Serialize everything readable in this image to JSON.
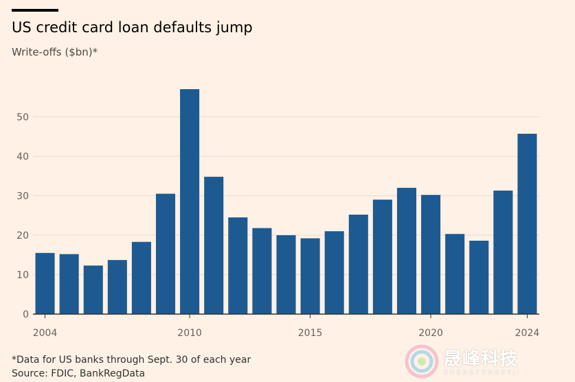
{
  "header": {
    "title": "US credit card loan defaults jump",
    "subtitle": "Write-offs ($bn)*"
  },
  "footer": {
    "note": "*Data for US banks through Sept. 30 of each year",
    "source": "Source: FDIC, BankRegData"
  },
  "watermark": {
    "text": "晟峰科技",
    "subtext": "SHENGFENGKEJI"
  },
  "colors": {
    "bar": "#1d5a91",
    "background": "#fff1e5",
    "grid": "#e6d9ce",
    "axis": "#33302e"
  },
  "chart_data": {
    "type": "bar",
    "categories": [
      "2004",
      "2005",
      "2006",
      "2007",
      "2008",
      "2009",
      "2010",
      "2011",
      "2012",
      "2013",
      "2014",
      "2015",
      "2016",
      "2017",
      "2018",
      "2019",
      "2020",
      "2021",
      "2022",
      "2023",
      "2024"
    ],
    "values": [
      15.5,
      15.2,
      12.3,
      13.7,
      18.3,
      30.5,
      57.0,
      34.8,
      24.5,
      21.8,
      20.0,
      19.2,
      21.0,
      25.2,
      29.0,
      32.0,
      30.2,
      20.3,
      18.6,
      31.3,
      45.7
    ],
    "x_tick_labels": [
      "2004",
      "2010",
      "2015",
      "2020",
      "2024"
    ],
    "y_ticks": [
      0,
      10,
      20,
      30,
      40,
      50
    ],
    "ylim": [
      0,
      57
    ],
    "grid": true
  }
}
